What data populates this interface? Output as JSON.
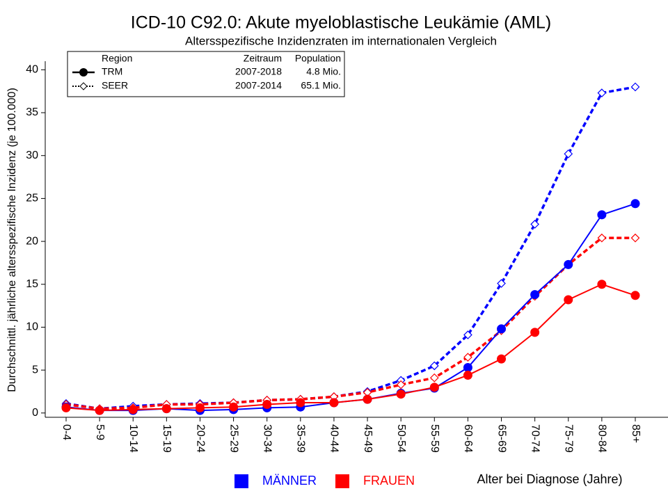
{
  "chart_data": {
    "type": "line",
    "title": "ICD-10 C92.0: Akute myeloblastische Leukämie (AML)",
    "subtitle": "Altersspezifische Inzidenzraten im internationalen Vergleich",
    "y_label": "Durchschnittl. jährliche altersspezifische Inzidenz (je 100.000)",
    "x_label": "Alter bei Diagnose (Jahre)",
    "categories": [
      "0-4",
      "5-9",
      "10-14",
      "15-19",
      "20-24",
      "25-29",
      "30-34",
      "35-39",
      "40-44",
      "45-49",
      "50-54",
      "55-59",
      "60-64",
      "65-69",
      "70-74",
      "75-79",
      "80-84",
      "85+"
    ],
    "ylim": [
      -0.5,
      41
    ],
    "yticks": [
      0,
      5,
      10,
      15,
      20,
      25,
      30,
      35,
      40
    ],
    "legend_header": [
      "Region",
      "Zeitraum",
      "Population"
    ],
    "regions": [
      {
        "name": "TRM",
        "period": "2007-2018",
        "population": "4.8 Mio.",
        "dash": "solid",
        "marker": "circle"
      },
      {
        "name": "SEER",
        "period": "2007-2014",
        "population": "65.1 Mio.",
        "dash": "dashed",
        "marker": "diamond"
      }
    ],
    "sexes": [
      {
        "name": "MÄNNER",
        "color": "#0000ff"
      },
      {
        "name": "FRAUEN",
        "color": "#ff0000"
      }
    ],
    "series": [
      {
        "region": "SEER",
        "sex": "MÄNNER",
        "values": [
          1.1,
          0.5,
          0.8,
          1.0,
          1.1,
          1.2,
          1.5,
          1.6,
          1.9,
          2.5,
          3.8,
          5.5,
          9.1,
          15.1,
          22.0,
          30.2,
          37.3,
          38.0
        ]
      },
      {
        "region": "SEER",
        "sex": "FRAUEN",
        "values": [
          1.0,
          0.5,
          0.6,
          1.0,
          1.0,
          1.2,
          1.5,
          1.6,
          1.9,
          2.4,
          3.3,
          4.1,
          6.5,
          9.6,
          13.6,
          17.3,
          20.4,
          20.4
        ]
      },
      {
        "region": "TRM",
        "sex": "MÄNNER",
        "values": [
          0.7,
          0.3,
          0.3,
          0.5,
          0.3,
          0.4,
          0.6,
          0.7,
          1.2,
          1.6,
          2.3,
          2.9,
          5.3,
          9.8,
          13.8,
          17.3,
          23.1,
          24.4
        ]
      },
      {
        "region": "TRM",
        "sex": "FRAUEN",
        "values": [
          0.6,
          0.3,
          0.4,
          0.5,
          0.6,
          0.7,
          1.0,
          1.2,
          1.2,
          1.6,
          2.2,
          3.0,
          4.4,
          6.3,
          9.4,
          13.2,
          15.0,
          13.7
        ]
      }
    ]
  }
}
